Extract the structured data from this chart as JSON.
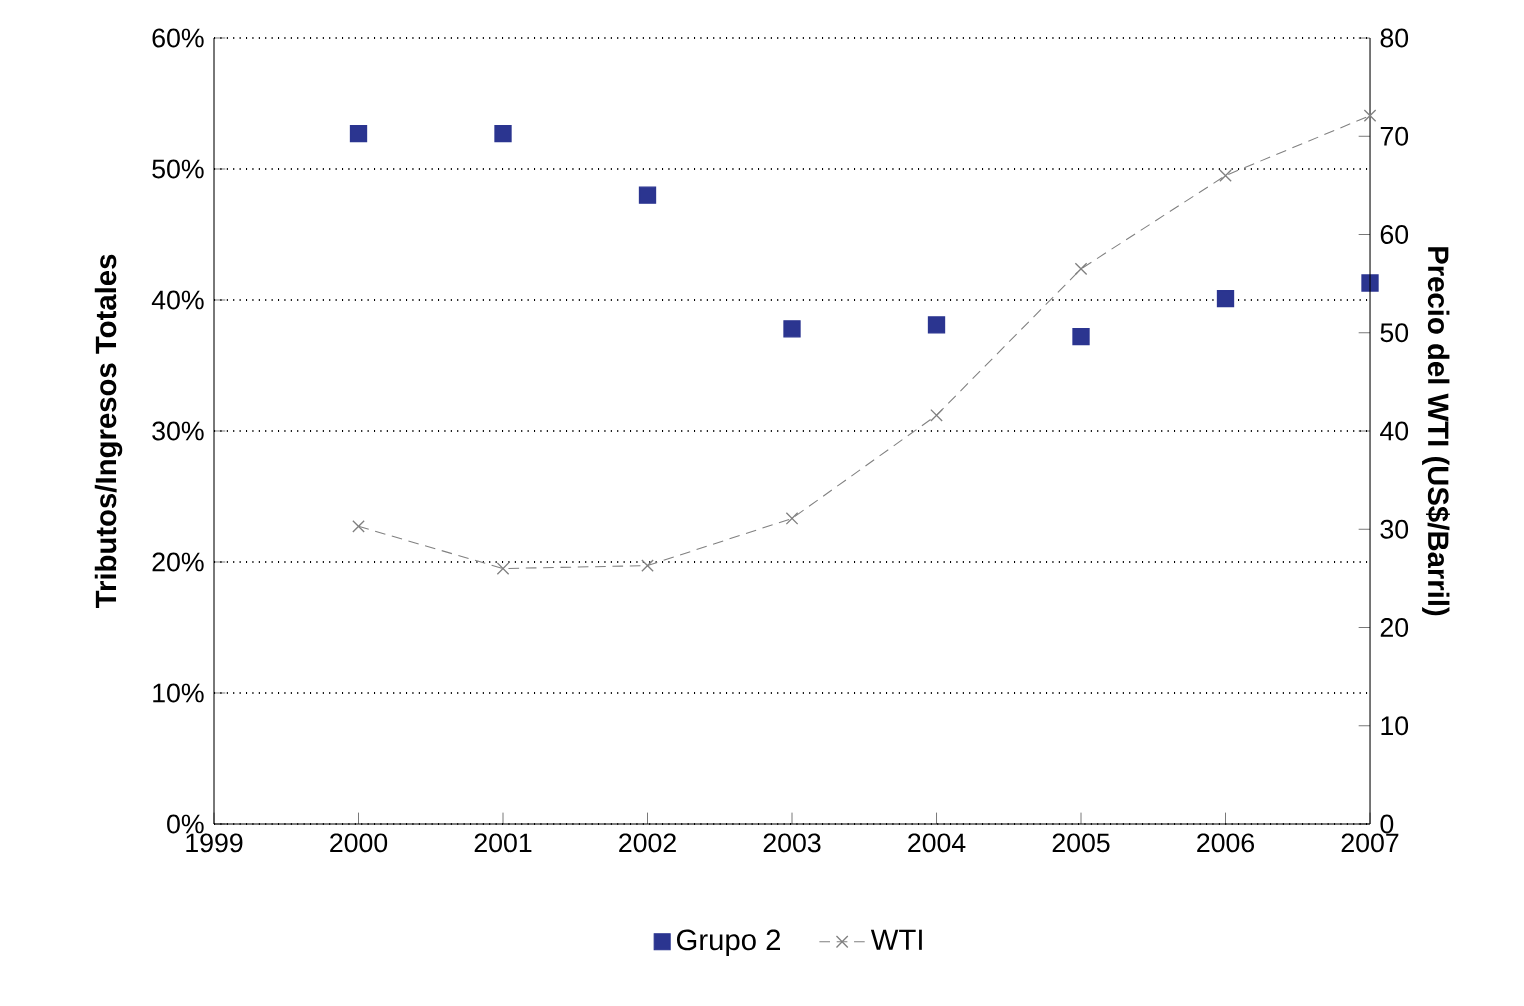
{
  "chart_data": {
    "type": "scatter",
    "x": [
      2000,
      2001,
      2002,
      2003,
      2004,
      2005,
      2006,
      2007
    ],
    "series": [
      {
        "name": "Grupo 2",
        "color": "#2b3590",
        "marker": "square",
        "values": [
          52.7,
          52.7,
          48.0,
          37.8,
          38.1,
          37.2,
          40.1,
          41.3
        ]
      },
      {
        "name": "WTI",
        "type": "line",
        "axis": "y2",
        "color": "#808080",
        "marker": "cross",
        "line_style": "dashed",
        "values": [
          30.3,
          26.0,
          26.3,
          31.1,
          41.6,
          56.5,
          66.0,
          72.1
        ]
      }
    ],
    "ylabel": "Tributos/Ingresos Totales",
    "y2label": "Precio del WTI (US$/Barril)",
    "xlim": [
      1999,
      2007
    ],
    "xticks": [
      1999,
      2000,
      2001,
      2002,
      2003,
      2004,
      2005,
      2006,
      2007
    ],
    "ylim": [
      0,
      60
    ],
    "yticks": [
      {
        "value": 0,
        "label": "0%"
      },
      {
        "value": 10,
        "label": "10%"
      },
      {
        "value": 20,
        "label": "20%"
      },
      {
        "value": 30,
        "label": "30%"
      },
      {
        "value": 40,
        "label": "40%"
      },
      {
        "value": 50,
        "label": "50%"
      },
      {
        "value": 60,
        "label": "60%"
      }
    ],
    "y2lim": [
      0,
      80
    ],
    "y2ticks": [
      0,
      10,
      20,
      30,
      40,
      50,
      60,
      70,
      80
    ],
    "grid": "y",
    "legend": "bottom"
  }
}
